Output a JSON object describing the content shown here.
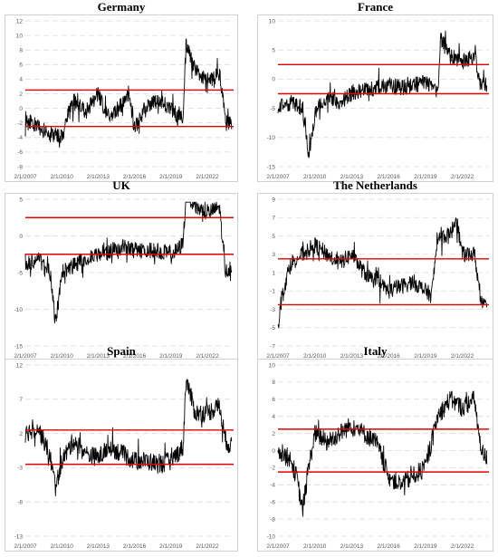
{
  "colors": {
    "series": "#000000",
    "threshold": "#e00000",
    "grid": "#d9d9d9"
  },
  "x_tick_labels": [
    "2/1/2007",
    "2/1/2010",
    "2/1/2013",
    "2/1/2016",
    "2/1/2019",
    "2/1/2022"
  ],
  "chart_data": [
    {
      "type": "line",
      "title": "Germany",
      "ylim": [
        -8,
        12
      ],
      "yticks": [
        -8,
        -6,
        -4,
        -2,
        0,
        2,
        4,
        6,
        8,
        10,
        12
      ],
      "thresholds": [
        2.5,
        -2.5
      ],
      "x": [
        "2007-02",
        "2008-02",
        "2009-02",
        "2010-02",
        "2010-08",
        "2011-02",
        "2012-02",
        "2013-02",
        "2013-08",
        "2014-02",
        "2015-02",
        "2015-08",
        "2016-02",
        "2017-02",
        "2018-02",
        "2019-02",
        "2019-08",
        "2020-02",
        "2020-05",
        "2021-02",
        "2022-02",
        "2022-08",
        "2023-02",
        "2023-08",
        "2024-02"
      ],
      "values": [
        -1.5,
        -2.5,
        -3.5,
        -4,
        -1,
        1,
        -0.5,
        2,
        0,
        -1,
        0.5,
        2,
        -3,
        0.5,
        1,
        0,
        -1,
        -1.5,
        9,
        5,
        4,
        4,
        5,
        -2,
        -2
      ]
    },
    {
      "type": "line",
      "title": "France",
      "ylim": [
        -15,
        10
      ],
      "yticks": [
        -15,
        -10,
        -5,
        0,
        5,
        10
      ],
      "thresholds": [
        2.5,
        -2.5
      ],
      "x": [
        "2007-02",
        "2008-02",
        "2009-02",
        "2009-08",
        "2010-02",
        "2011-02",
        "2012-02",
        "2013-02",
        "2014-02",
        "2015-02",
        "2016-02",
        "2017-02",
        "2018-02",
        "2019-02",
        "2019-08",
        "2020-02",
        "2020-05",
        "2021-02",
        "2022-02",
        "2023-02",
        "2023-08",
        "2024-02"
      ],
      "values": [
        -5,
        -4,
        -5,
        -13,
        -6,
        -3,
        -4,
        -2.5,
        -2,
        -1.5,
        -1,
        -1.5,
        -1,
        -0.5,
        -1,
        -2,
        7,
        4,
        3,
        4,
        -1,
        -1
      ]
    },
    {
      "type": "line",
      "title": "UK",
      "ylim": [
        -15,
        5
      ],
      "yticks": [
        -15,
        -10,
        -5,
        0,
        5
      ],
      "thresholds": [
        2.5,
        -2.5
      ],
      "x": [
        "2007-02",
        "2008-02",
        "2009-02",
        "2009-08",
        "2010-02",
        "2011-02",
        "2012-02",
        "2013-02",
        "2014-02",
        "2015-02",
        "2016-02",
        "2017-02",
        "2018-02",
        "2019-02",
        "2019-08",
        "2020-02",
        "2020-05",
        "2021-02",
        "2022-02",
        "2023-02",
        "2023-08",
        "2024-02"
      ],
      "values": [
        -4,
        -3,
        -5,
        -12,
        -5,
        -4,
        -3,
        -2.5,
        -2,
        -1.5,
        -2,
        -2,
        -2,
        -2.5,
        -2,
        -1,
        6,
        4,
        3,
        4,
        -5,
        -4
      ]
    },
    {
      "type": "line",
      "title": "The Netherlands",
      "ylim": [
        -7,
        9
      ],
      "yticks": [
        -7,
        -5,
        -3,
        -1,
        1,
        3,
        5,
        7,
        9
      ],
      "thresholds": [
        2.5,
        -2.5
      ],
      "x": [
        "2007-02",
        "2007-05",
        "2008-02",
        "2009-02",
        "2010-02",
        "2011-02",
        "2012-02",
        "2013-02",
        "2014-02",
        "2015-02",
        "2016-02",
        "2017-02",
        "2018-02",
        "2019-02",
        "2019-08",
        "2020-02",
        "2021-02",
        "2021-08",
        "2022-02",
        "2023-02",
        "2023-08",
        "2024-02"
      ],
      "values": [
        -5,
        -2,
        2,
        3,
        4,
        3,
        2,
        3,
        1,
        0,
        -1,
        -0.5,
        0,
        -1,
        -1.5,
        5,
        5,
        7,
        3,
        3,
        -2,
        -2
      ]
    },
    {
      "type": "line",
      "title": "Spain",
      "ylim": [
        -13,
        12
      ],
      "yticks": [
        -13,
        -8,
        -3,
        2,
        7,
        12
      ],
      "thresholds": [
        2.5,
        -2.5
      ],
      "x": [
        "2007-02",
        "2008-02",
        "2009-02",
        "2009-08",
        "2010-02",
        "2011-02",
        "2012-02",
        "2013-02",
        "2014-02",
        "2015-02",
        "2016-02",
        "2017-02",
        "2018-02",
        "2019-02",
        "2019-08",
        "2020-02",
        "2020-05",
        "2021-02",
        "2022-02",
        "2023-02",
        "2023-08",
        "2024-02"
      ],
      "values": [
        2,
        3,
        -1,
        -6,
        -2,
        1,
        -1,
        -1.5,
        0,
        -1,
        -2,
        -2,
        -2.5,
        -2,
        -1,
        0,
        10,
        5,
        5,
        6,
        1,
        0
      ]
    },
    {
      "type": "line",
      "title": "Italy",
      "ylim": [
        -10,
        10
      ],
      "yticks": [
        -10,
        -8,
        -6,
        -4,
        -2,
        0,
        2,
        4,
        6,
        8,
        10
      ],
      "thresholds": [
        2.5,
        -2.5
      ],
      "x": [
        "2007-02",
        "2008-02",
        "2008-08",
        "2009-02",
        "2009-08",
        "2010-02",
        "2011-02",
        "2012-02",
        "2013-02",
        "2014-02",
        "2015-02",
        "2016-02",
        "2017-02",
        "2018-02",
        "2019-02",
        "2020-02",
        "2021-02",
        "2022-02",
        "2023-02",
        "2023-08",
        "2024-02"
      ],
      "values": [
        0,
        -1,
        -3,
        -7,
        -2,
        2,
        1,
        2,
        3,
        2,
        1,
        -3,
        -4,
        -3,
        -2,
        4,
        6,
        5,
        6,
        0,
        -1
      ]
    }
  ]
}
